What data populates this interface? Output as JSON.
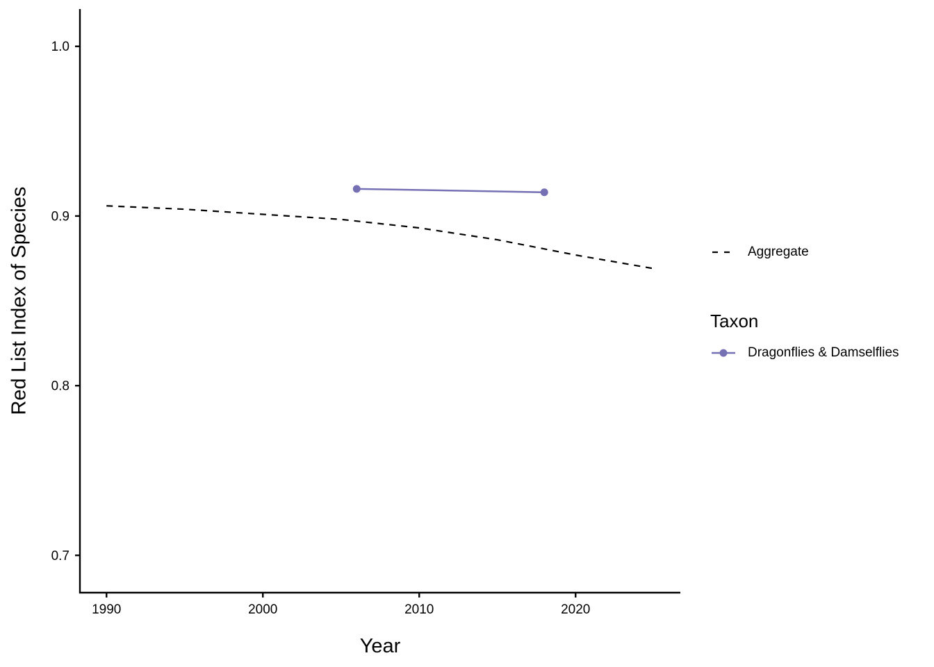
{
  "chart_data": {
    "type": "line",
    "title": "",
    "xlabel": "Year",
    "ylabel": "Red List Index of Species",
    "x_ticks": [
      1990,
      2000,
      2010,
      2020
    ],
    "y_ticks": [
      0.7,
      0.8,
      0.9,
      1.0
    ],
    "x_range": [
      1988.3,
      2026.7
    ],
    "y_range": [
      0.678,
      1.022
    ],
    "grid": false,
    "legend_position": "right",
    "axis_color": "#000000",
    "series": [
      {
        "name": "Aggregate",
        "style": "dashed",
        "color": "#000000",
        "show_points": false,
        "x": [
          1990,
          1995,
          2000,
          2005,
          2010,
          2015,
          2020,
          2025
        ],
        "y": [
          0.906,
          0.904,
          0.901,
          0.898,
          0.893,
          0.886,
          0.877,
          0.869
        ]
      },
      {
        "name": "Dragonflies & Damselflies",
        "style": "solid",
        "color": "#7570b3",
        "show_points": true,
        "x": [
          2006,
          2018
        ],
        "y": [
          0.916,
          0.914
        ]
      }
    ]
  },
  "legend": {
    "aggregate_label": "Aggregate",
    "taxon_title": "Taxon",
    "dragonflies_label": "Dragonflies & Damselflies"
  }
}
